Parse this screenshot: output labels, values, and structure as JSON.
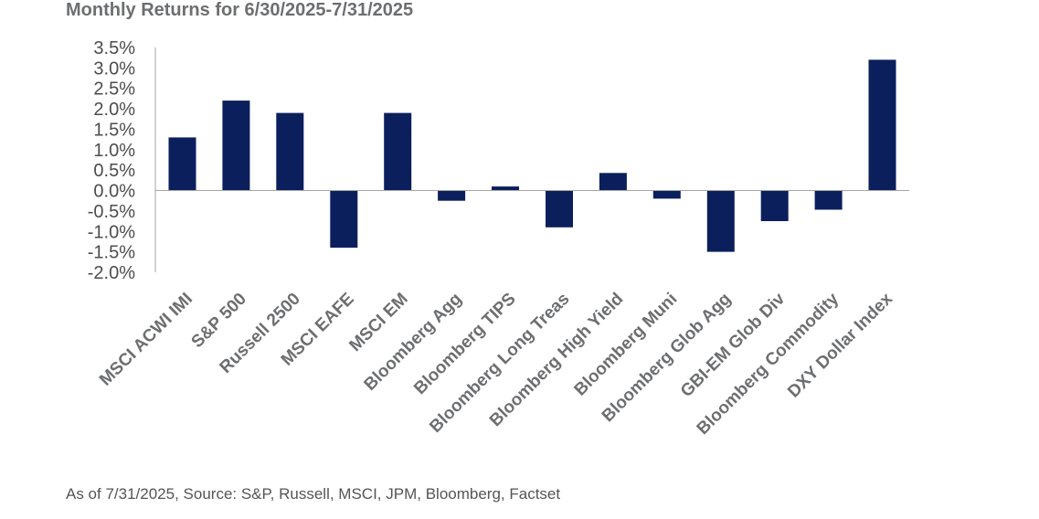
{
  "chart_title": "Monthly Returns for 6/30/2025-7/31/2025",
  "source_note": "As of 7/31/2025, Source: S&P, Russell, MSCI, JPM, Bloomberg, Factset",
  "chart_data": {
    "type": "bar",
    "title": "Monthly Returns for 6/30/2025-7/31/2025",
    "xlabel": "",
    "ylabel": "",
    "categories": [
      "MSCI ACWI IMI",
      "S&P 500",
      "Russell 2500",
      "MSCI EAFE",
      "MSCI EM",
      "Bloomberg Agg",
      "Bloomberg TIPS",
      "Bloomberg Long Treas",
      "Bloomberg High Yield",
      "Bloomberg Muni",
      "Bloomberg Glob Agg",
      "GBI-EM Glob Div",
      "Bloomberg Commodity",
      "DXY Dollar Index"
    ],
    "values": [
      1.3,
      2.2,
      1.9,
      -1.4,
      1.9,
      -0.25,
      0.1,
      -0.9,
      0.43,
      -0.2,
      -1.5,
      -0.75,
      -0.47,
      3.2
    ],
    "ylim": [
      -2.0,
      3.5
    ],
    "yticks": [
      3.5,
      3.0,
      2.5,
      2.0,
      1.5,
      1.0,
      0.5,
      0.0,
      -0.5,
      -1.0,
      -1.5,
      -2.0
    ],
    "ytick_labels": [
      "3.5%",
      "3.0%",
      "2.5%",
      "2.0%",
      "1.5%",
      "1.0%",
      "0.5%",
      "0.0%",
      "-0.5%",
      "-1.0%",
      "-1.5%",
      "-2.0%"
    ],
    "bar_color": "#0b1f5c",
    "grid": false,
    "legend": "none"
  }
}
